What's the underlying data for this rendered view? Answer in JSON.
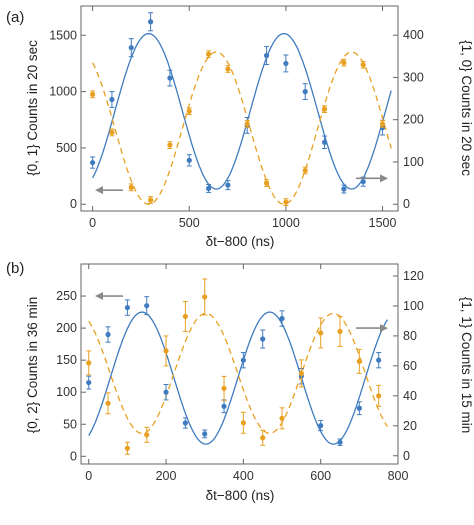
{
  "colors": {
    "blue": "#3f7bbf",
    "orange": "#e8a020",
    "arrow": "#8a8a8a",
    "frame": "#666666"
  },
  "chart_data": [
    {
      "type": "scatter",
      "panel_label": "(a)",
      "xlabel": "δt−800 (ns)",
      "ylabel_left": "{0, 1} Counts in 20 sec",
      "ylabel_right": "{1, 0} Counts in 20 sec",
      "xlim": [
        -60,
        1580
      ],
      "ylim_left": [
        -60,
        1760
      ],
      "ylim_right": [
        -16,
        469
      ],
      "x_ticks": [
        "0",
        "500",
        "1000",
        "1500"
      ],
      "y_left_ticks": [
        "0",
        "500",
        "1000",
        "1500"
      ],
      "y_right_ticks": [
        "0",
        "100",
        "200",
        "300",
        "400"
      ],
      "series": [
        {
          "axis": "left",
          "x": [
            0,
            100,
            200,
            300,
            400,
            500,
            600,
            700,
            800,
            900,
            1000,
            1100,
            1200,
            1300,
            1400,
            1500
          ],
          "y": [
            370,
            930,
            1390,
            1620,
            1120,
            390,
            140,
            170,
            700,
            1320,
            1250,
            1000,
            550,
            135,
            200,
            680
          ],
          "err": [
            50,
            70,
            80,
            80,
            70,
            50,
            35,
            40,
            70,
            80,
            75,
            70,
            55,
            35,
            40,
            65
          ],
          "fit": {
            "offset": 825,
            "amp": 690,
            "period": 700,
            "phase_zero_x": 290
          }
        },
        {
          "axis": "right",
          "x": [
            0,
            100,
            200,
            300,
            400,
            500,
            600,
            700,
            800,
            900,
            1000,
            1100,
            1200,
            1300,
            1400,
            1500
          ],
          "y": [
            260,
            170,
            40,
            10,
            140,
            220,
            355,
            320,
            190,
            50,
            5,
            80,
            225,
            335,
            330,
            190
          ],
          "err": [
            8,
            8,
            8,
            8,
            8,
            8,
            8,
            8,
            8,
            8,
            8,
            8,
            8,
            8,
            8,
            8
          ],
          "fit": {
            "offset": 180,
            "amp": 180,
            "period": 700,
            "phase_zero_x": 640
          }
        }
      ],
      "arrows": [
        {
          "side": "left",
          "y_left": 125
        },
        {
          "side": "right",
          "y_left": 230
        }
      ]
    },
    {
      "type": "scatter",
      "panel_label": "(b)",
      "xlabel": "δt−800 (ns)",
      "ylabel_left": "{0, 2} Counts in 36 min",
      "ylabel_right": "{1, 1} Counts in 15 min",
      "xlim": [
        -20,
        800
      ],
      "ylim_left": [
        -12,
        300
      ],
      "ylim_right": [
        -5.5,
        128
      ],
      "x_ticks": [
        "0",
        "200",
        "400",
        "600",
        "800"
      ],
      "y_left_ticks": [
        "0",
        "50",
        "100",
        "150",
        "200",
        "250"
      ],
      "y_right_ticks": [
        "0",
        "20",
        "40",
        "60",
        "80",
        "100",
        "120"
      ],
      "series": [
        {
          "axis": "left",
          "x": [
            0,
            50,
            100,
            150,
            200,
            250,
            300,
            350,
            400,
            450,
            500,
            550,
            600,
            650,
            700,
            750
          ],
          "y": [
            115,
            190,
            232,
            235,
            100,
            52,
            35,
            78,
            150,
            183,
            215,
            125,
            48,
            22,
            75,
            150
          ],
          "err": [
            10,
            12,
            12,
            14,
            12,
            8,
            6,
            10,
            12,
            14,
            12,
            12,
            8,
            5,
            10,
            12
          ],
          "fit": {
            "offset": 122,
            "amp": 103,
            "period": 330,
            "phase_zero_x": 138
          }
        },
        {
          "axis": "right",
          "x": [
            0,
            50,
            100,
            150,
            200,
            250,
            300,
            350,
            400,
            450,
            500,
            550,
            600,
            650,
            700,
            750
          ],
          "y": [
            62,
            35,
            5,
            14,
            70,
            93,
            106,
            45,
            22,
            12,
            25,
            55,
            82,
            83,
            63,
            40
          ],
          "err": [
            8,
            7,
            4,
            5,
            10,
            10,
            12,
            8,
            7,
            5,
            7,
            9,
            10,
            10,
            8,
            7
          ],
          "fit": {
            "offset": 55,
            "amp": 40,
            "period": 330,
            "phase_zero_x": 303
          }
        }
      ],
      "arrows": [
        {
          "side": "left",
          "y_left": 250
        },
        {
          "side": "right",
          "y_left": 200
        }
      ]
    }
  ]
}
